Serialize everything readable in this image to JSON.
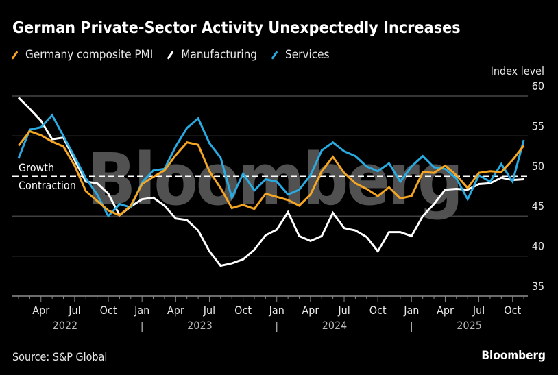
{
  "header": {
    "title": "German Private-Sector Activity Unexpectedly Increases"
  },
  "footer": {
    "source": "Source: S&P Global",
    "brand": "Bloomberg"
  },
  "watermark": "Bloomberg",
  "chart_data": {
    "type": "line",
    "title": "German Private-Sector Activity Unexpectedly Increases",
    "xlabel": "",
    "ylabel": "Index level",
    "ylim": [
      35,
      60
    ],
    "yticks": [
      35,
      40,
      45,
      50,
      55,
      60
    ],
    "grid": true,
    "legend_position": "top-left",
    "reference_line": {
      "value": 50,
      "label_above": "Growth",
      "label_below": "Contraction",
      "style": "dashed"
    },
    "x_start": "2022-01",
    "x_tick_labels": [
      {
        "month_index": 3,
        "label": "Apr"
      },
      {
        "month_index": 6,
        "label": "Jul"
      },
      {
        "month_index": 9,
        "label": "Oct"
      },
      {
        "month_index": 12,
        "label": "Jan"
      },
      {
        "month_index": 15,
        "label": "Apr"
      },
      {
        "month_index": 18,
        "label": "Jul"
      },
      {
        "month_index": 21,
        "label": "Oct"
      },
      {
        "month_index": 24,
        "label": "Jan"
      },
      {
        "month_index": 27,
        "label": "Apr"
      },
      {
        "month_index": 30,
        "label": "Jul"
      },
      {
        "month_index": 33,
        "label": "Oct"
      },
      {
        "month_index": 36,
        "label": "Jan"
      },
      {
        "month_index": 39,
        "label": "Apr"
      },
      {
        "month_index": 42,
        "label": "Jul"
      },
      {
        "month_index": 45,
        "label": "Oct"
      }
    ],
    "year_labels": [
      {
        "month_index": 6,
        "label": "2022"
      },
      {
        "month_index": 18,
        "label": "2023"
      },
      {
        "month_index": 30,
        "label": "2024"
      },
      {
        "month_index": 42,
        "label": "2025"
      }
    ],
    "year_separators": [
      12,
      24,
      36
    ],
    "series": [
      {
        "name": "Germany composite PMI",
        "color": "#f5a623",
        "values": [
          53.8,
          55.6,
          55.1,
          54.3,
          53.7,
          51.3,
          48.1,
          46.9,
          45.7,
          45.1,
          46.3,
          49.0,
          49.9,
          50.7,
          52.6,
          54.2,
          53.9,
          50.6,
          48.5,
          46.0,
          46.4,
          45.9,
          47.8,
          47.4,
          47.0,
          46.3,
          47.7,
          50.6,
          52.4,
          50.4,
          49.1,
          48.4,
          47.5,
          48.6,
          47.2,
          47.5,
          50.5,
          50.4,
          51.3,
          50.1,
          48.5,
          50.4,
          50.6,
          50.5,
          52.0,
          53.8
        ]
      },
      {
        "name": "Manufacturing",
        "color": "#ffffff",
        "values": [
          59.8,
          58.4,
          56.9,
          54.6,
          54.8,
          52.0,
          49.3,
          49.1,
          47.8,
          45.1,
          46.2,
          47.1,
          47.3,
          46.3,
          44.7,
          44.5,
          43.2,
          40.6,
          38.8,
          39.1,
          39.6,
          40.8,
          42.6,
          43.3,
          45.5,
          42.5,
          41.9,
          42.5,
          45.4,
          43.5,
          43.2,
          42.4,
          40.6,
          43.0,
          43.0,
          42.5,
          45.0,
          46.5,
          48.3,
          48.4,
          48.3,
          49.0,
          49.1,
          49.8,
          49.5,
          49.6
        ]
      },
      {
        "name": "Services",
        "color": "#29abe2",
        "values": [
          52.2,
          55.8,
          56.1,
          57.6,
          55.0,
          52.4,
          49.7,
          47.7,
          45.0,
          46.5,
          46.1,
          49.2,
          50.7,
          50.9,
          53.7,
          56.0,
          57.2,
          54.1,
          52.3,
          47.3,
          50.3,
          48.2,
          49.6,
          49.3,
          47.7,
          48.3,
          50.1,
          53.2,
          54.2,
          53.1,
          52.5,
          51.2,
          50.6,
          51.6,
          49.3,
          51.2,
          52.5,
          51.1,
          50.9,
          49.7,
          47.1,
          50.1,
          49.3,
          51.5,
          49.3,
          54.5
        ]
      }
    ]
  }
}
